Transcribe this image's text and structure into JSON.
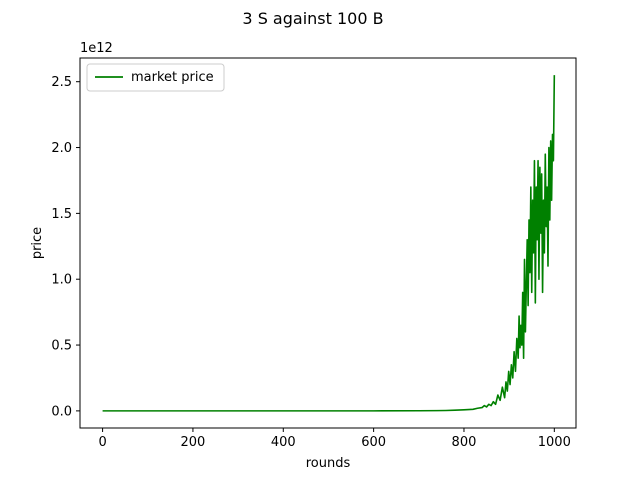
{
  "chart_data": {
    "type": "line",
    "title": "3 S against 100 B",
    "xlabel": "rounds",
    "ylabel": "price",
    "y_offset_text": "1e12",
    "xlim": [
      -50,
      1048
    ],
    "ylim": [
      -0.13,
      2.68
    ],
    "x_ticks": [
      0,
      200,
      400,
      600,
      800,
      1000
    ],
    "x_tick_labels": [
      "0",
      "200",
      "400",
      "600",
      "800",
      "1000"
    ],
    "y_ticks": [
      0.0,
      0.5,
      1.0,
      1.5,
      2.0,
      2.5
    ],
    "y_tick_labels": [
      "0.0",
      "0.5",
      "1.0",
      "1.5",
      "2.0",
      "2.5"
    ],
    "grid": false,
    "legend_position": "upper-left",
    "series": [
      {
        "name": "market price",
        "color": "#008000",
        "x": [
          0,
          100,
          200,
          300,
          400,
          500,
          600,
          700,
          740,
          760,
          780,
          800,
          810,
          820,
          830,
          840,
          845,
          850,
          855,
          860,
          865,
          870,
          875,
          880,
          885,
          890,
          893,
          896,
          899,
          902,
          905,
          908,
          911,
          914,
          917,
          920,
          922,
          924,
          926,
          928,
          930,
          932,
          934,
          936,
          938,
          940,
          942,
          944,
          946,
          948,
          950,
          952,
          954,
          956,
          958,
          960,
          962,
          964,
          966,
          968,
          970,
          972,
          974,
          976,
          978,
          980,
          982,
          984,
          986,
          988,
          990,
          992,
          994,
          996,
          998,
          1000
        ],
        "y": [
          0,
          0,
          0,
          0,
          0,
          0,
          0,
          0.001,
          0.002,
          0.003,
          0.005,
          0.008,
          0.01,
          0.012,
          0.02,
          0.025,
          0.04,
          0.03,
          0.05,
          0.04,
          0.07,
          0.05,
          0.12,
          0.08,
          0.18,
          0.1,
          0.22,
          0.15,
          0.3,
          0.2,
          0.35,
          0.25,
          0.45,
          0.3,
          0.55,
          0.4,
          0.72,
          0.48,
          0.65,
          0.5,
          0.9,
          0.4,
          1.15,
          0.6,
          0.95,
          1.3,
          0.8,
          1.45,
          1.05,
          1.7,
          0.9,
          1.6,
          1.2,
          1.9,
          0.82,
          1.7,
          1.3,
          1.9,
          1.0,
          1.85,
          1.35,
          1.8,
          0.9,
          1.6,
          1.2,
          1.95,
          1.4,
          1.7,
          1.1,
          2.0,
          1.45,
          2.05,
          1.6,
          2.1,
          1.9,
          2.55
        ]
      }
    ]
  }
}
